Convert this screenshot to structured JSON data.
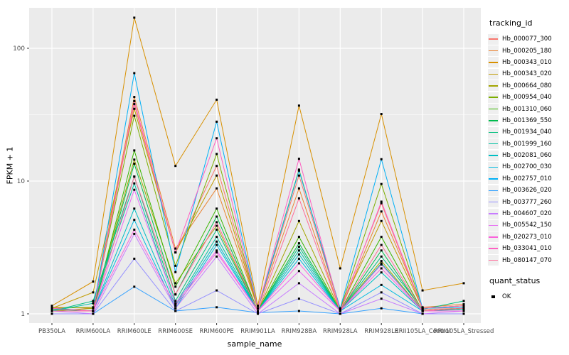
{
  "chart_data": {
    "type": "line",
    "title": "",
    "xlabel": "sample_name",
    "ylabel": "FPKM + 1",
    "y_scale": "log10",
    "y_ticks": [
      1,
      10,
      100
    ],
    "y_minor_ticks": [
      3.1623,
      31.623
    ],
    "ylim": [
      0.85,
      200
    ],
    "grid": true,
    "panel_bg": "#ebebeb",
    "grid_color": "#ffffff",
    "tick_label_color": "#4d4d4d",
    "point_color": "#000000",
    "legend_position": "right",
    "categories": [
      "PB350LA",
      "RRIM600LA",
      "RRIM600LE",
      "RRIM600SE",
      "RRIM600PE",
      "RRIM901LA",
      "RRIM928BA",
      "RRIM928LA",
      "RRIM928LE",
      "RRII105LA_Control",
      "RRII105LA_Stressed"
    ],
    "legend": {
      "color_title": "tracking_id",
      "shape_title": "quant_status",
      "shape_items": [
        {
          "label": "OK",
          "shape": "square",
          "color": "#000000"
        }
      ]
    },
    "series": [
      {
        "name": "Hb_000077_300",
        "color": "#F8766D",
        "values": [
          1.1,
          1.05,
          38,
          2.9,
          13,
          1.1,
          11,
          1.08,
          6.8,
          1.08,
          1.1
        ]
      },
      {
        "name": "Hb_000205_180",
        "color": "#EA8331",
        "values": [
          1.12,
          1.1,
          43,
          3.1,
          8.8,
          1.1,
          8.8,
          1.05,
          5.9,
          1.12,
          1.18
        ]
      },
      {
        "name": "Hb_000343_010",
        "color": "#D89000",
        "values": [
          1.15,
          1.75,
          170,
          13,
          41,
          1.15,
          37,
          2.2,
          32,
          1.5,
          1.7
        ]
      },
      {
        "name": "Hb_000343_020",
        "color": "#C09B00",
        "values": [
          1.1,
          1.45,
          35,
          2.9,
          11,
          1.1,
          12,
          1.1,
          5,
          1.1,
          1.15
        ]
      },
      {
        "name": "Hb_000664_080",
        "color": "#A3A500",
        "values": [
          1.05,
          1.1,
          14.5,
          1.7,
          4.6,
          1.05,
          5,
          1.05,
          2.5,
          1.05,
          1.1
        ]
      },
      {
        "name": "Hb_000954_040",
        "color": "#7CAE00",
        "values": [
          1.1,
          1.12,
          31,
          2.3,
          16,
          1.1,
          12.2,
          1.08,
          9.5,
          1.1,
          1.15
        ]
      },
      {
        "name": "Hb_001310_060",
        "color": "#39B600",
        "values": [
          1.05,
          1.05,
          17,
          1.6,
          6.2,
          1.05,
          3.8,
          1.05,
          3.8,
          1.05,
          1.1
        ]
      },
      {
        "name": "Hb_001369_550",
        "color": "#00BB4E",
        "values": [
          1.08,
          1.05,
          13.5,
          1.4,
          5.4,
          1.05,
          3.4,
          1.05,
          3,
          1.05,
          1.1
        ]
      },
      {
        "name": "Hb_001934_040",
        "color": "#00BF7D",
        "values": [
          1.05,
          1.25,
          10.8,
          1.25,
          4.3,
          1.05,
          3.2,
          1.05,
          2.7,
          1.08,
          1.25
        ]
      },
      {
        "name": "Hb_001999_160",
        "color": "#00C1A3",
        "values": [
          1.05,
          1.2,
          9.6,
          1.18,
          3.8,
          1.05,
          3,
          1.05,
          2.4,
          1.05,
          1.08
        ]
      },
      {
        "name": "Hb_002081_060",
        "color": "#00BFC4",
        "values": [
          1.05,
          1.05,
          6.2,
          1.15,
          3.5,
          1.05,
          2.8,
          1.05,
          2.05,
          1.05,
          1.05
        ]
      },
      {
        "name": "Hb_002700_030",
        "color": "#00BAE0",
        "values": [
          1.05,
          1.05,
          5.1,
          1.1,
          3.3,
          1.05,
          2.6,
          1.05,
          1.65,
          1.05,
          1.05
        ]
      },
      {
        "name": "Hb_002757_010",
        "color": "#00B0F6",
        "values": [
          1.1,
          1.05,
          65,
          2.06,
          28,
          1.1,
          12,
          1.1,
          14.6,
          1.1,
          1.12
        ]
      },
      {
        "name": "Hb_003626_020",
        "color": "#35A2FF",
        "values": [
          1,
          1,
          1.6,
          1.05,
          1.12,
          1.02,
          1.05,
          1,
          1.1,
          1,
          1
        ]
      },
      {
        "name": "Hb_003777_260",
        "color": "#9590FF",
        "values": [
          1,
          1,
          2.6,
          1.05,
          1.5,
          1,
          1.3,
          1,
          1.45,
          1,
          1
        ]
      },
      {
        "name": "Hb_004607_020",
        "color": "#C77CFF",
        "values": [
          1.05,
          1,
          4,
          1.1,
          2.7,
          1,
          1.7,
          1,
          1.3,
          1,
          1.05
        ]
      },
      {
        "name": "Hb_005542_150",
        "color": "#E76BF3",
        "values": [
          1.05,
          1.05,
          8.6,
          1.2,
          3,
          1.05,
          2.1,
          1.05,
          2.35,
          1.05,
          1.05
        ]
      },
      {
        "name": "Hb_020273_010",
        "color": "#FA62DB",
        "values": [
          1.05,
          1.05,
          4.3,
          1.15,
          2.9,
          1.05,
          2.4,
          1.05,
          2.2,
          1.05,
          1.05
        ]
      },
      {
        "name": "Hb_033041_010",
        "color": "#FF61C3",
        "values": [
          1.1,
          1.05,
          40,
          2.9,
          21,
          1.1,
          14.7,
          1.05,
          7,
          1.1,
          1.15
        ]
      },
      {
        "name": "Hb_080147_070",
        "color": "#FF6A98",
        "values": [
          1.05,
          1.05,
          10.8,
          1.4,
          4.9,
          1.05,
          7.4,
          1.05,
          3.3,
          1.05,
          1.1
        ]
      }
    ]
  }
}
